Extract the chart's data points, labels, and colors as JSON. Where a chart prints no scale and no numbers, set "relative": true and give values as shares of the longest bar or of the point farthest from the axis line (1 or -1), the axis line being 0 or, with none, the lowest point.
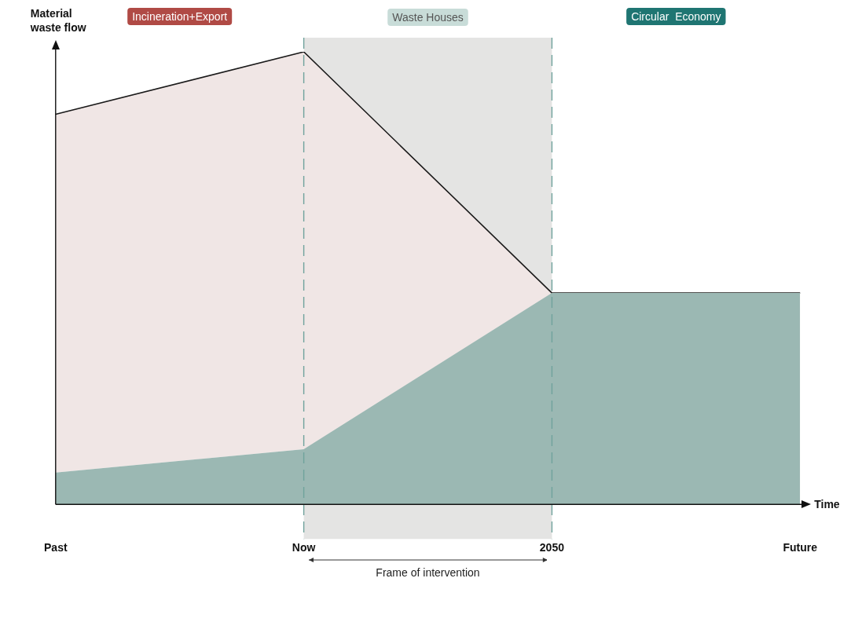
{
  "chart_data": {
    "type": "area",
    "relative": true,
    "stacked": true,
    "xlabel": "Time",
    "ylabel": "Material waste flow",
    "categories": [
      "Past",
      "Now",
      "2050",
      "Future"
    ],
    "series": [
      {
        "color": "#9bb8b3",
        "values": [
          0.07,
          0.122,
          0.467,
          0.467
        ]
      },
      {
        "color": "#f0e6e5",
        "values": [
          0.792,
          0.878,
          0,
          0
        ]
      }
    ],
    "bands": [
      {
        "axis": "x",
        "from": "Now",
        "to": "2050",
        "label": "Waste Houses",
        "color": "#e4e4e3"
      }
    ],
    "ref_lines": [
      {
        "axis": "x",
        "value": "Now",
        "color": "#6fa29c",
        "line_style": "dashed"
      },
      {
        "axis": "x",
        "value": "2050",
        "color": "#6fa29c",
        "line_style": "dashed"
      }
    ],
    "annotations": [
      "Incineration+Export",
      "Circular  Economy",
      "Frame of intervention"
    ],
    "legend": false,
    "grid": false,
    "marker": "none",
    "line_style": "solid"
  }
}
